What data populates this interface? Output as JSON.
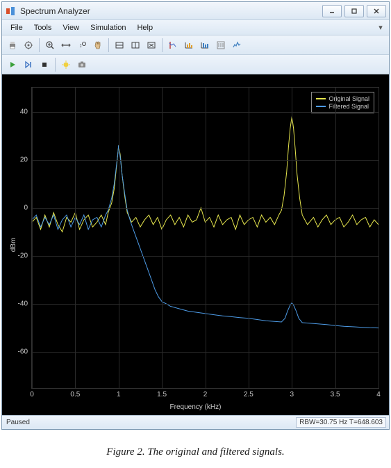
{
  "window": {
    "title": "Spectrum Analyzer",
    "icon_color_primary": "#d94f2a",
    "icon_color_secondary": "#4a90d9"
  },
  "menu": {
    "items": [
      "File",
      "Tools",
      "View",
      "Simulation",
      "Help"
    ],
    "dropdown_arrow": "▾"
  },
  "toolbars": {
    "row1_tooltips": [
      "Print",
      "Settings",
      "Zoom In",
      "Zoom X",
      "Zoom Y",
      "Pan",
      "Autoscale X",
      "Autoscale Y",
      "Autoscale Restore",
      "Measurements",
      "Cursor Measurements",
      "Peak Finder",
      "CCDF",
      "Spectrum Settings"
    ],
    "row2_tooltips": [
      "Run",
      "Step Forward",
      "Stop",
      "Highlight",
      "Snapshot"
    ]
  },
  "chart": {
    "type": "line",
    "background_color": "#000000",
    "grid_color": "#2a2a2a",
    "axis_text_color": "#cccccc",
    "x_label": "Frequency (kHz)",
    "y_label": "dBm",
    "xlim": [
      0,
      4
    ],
    "ylim": [
      -75,
      50
    ],
    "x_ticks": [
      0,
      0.5,
      1,
      1.5,
      2,
      2.5,
      3,
      3.5,
      4
    ],
    "y_ticks": [
      -60,
      -40,
      -20,
      0,
      20,
      40
    ],
    "label_fontsize": 10,
    "legend": {
      "entries": [
        {
          "label": "Original Signal",
          "color": "#e6e64d"
        },
        {
          "label": "Filtered Signal",
          "color": "#4d9be6"
        }
      ],
      "position": "top-right",
      "border_color": "#888888",
      "text_color": "#cccccc",
      "fontsize": 9
    },
    "series": {
      "original": {
        "color": "#e6e64d",
        "line_width": 1,
        "data": [
          [
            0.0,
            -6
          ],
          [
            0.05,
            -4
          ],
          [
            0.1,
            -9
          ],
          [
            0.15,
            -3
          ],
          [
            0.2,
            -8
          ],
          [
            0.25,
            -2
          ],
          [
            0.3,
            -7
          ],
          [
            0.35,
            -10
          ],
          [
            0.4,
            -4
          ],
          [
            0.45,
            -6
          ],
          [
            0.5,
            -2
          ],
          [
            0.55,
            -9
          ],
          [
            0.6,
            -5
          ],
          [
            0.65,
            -3
          ],
          [
            0.7,
            -8
          ],
          [
            0.75,
            -6
          ],
          [
            0.8,
            -3
          ],
          [
            0.85,
            -7
          ],
          [
            0.88,
            -2
          ],
          [
            0.92,
            2
          ],
          [
            0.95,
            8
          ],
          [
            0.97,
            15
          ],
          [
            0.99,
            22
          ],
          [
            1.0,
            26
          ],
          [
            1.02,
            22
          ],
          [
            1.04,
            14
          ],
          [
            1.07,
            5
          ],
          [
            1.1,
            -2
          ],
          [
            1.15,
            -6
          ],
          [
            1.2,
            -4
          ],
          [
            1.25,
            -8
          ],
          [
            1.3,
            -5
          ],
          [
            1.35,
            -3
          ],
          [
            1.4,
            -7
          ],
          [
            1.45,
            -4
          ],
          [
            1.5,
            -9
          ],
          [
            1.55,
            -5
          ],
          [
            1.6,
            -3
          ],
          [
            1.65,
            -7
          ],
          [
            1.7,
            -4
          ],
          [
            1.75,
            -8
          ],
          [
            1.8,
            -3
          ],
          [
            1.85,
            -6
          ],
          [
            1.9,
            -5
          ],
          [
            1.95,
            0
          ],
          [
            2.0,
            -6
          ],
          [
            2.05,
            -4
          ],
          [
            2.1,
            -8
          ],
          [
            2.15,
            -3
          ],
          [
            2.2,
            -7
          ],
          [
            2.25,
            -5
          ],
          [
            2.3,
            -4
          ],
          [
            2.35,
            -9
          ],
          [
            2.4,
            -3
          ],
          [
            2.45,
            -7
          ],
          [
            2.5,
            -5
          ],
          [
            2.55,
            -4
          ],
          [
            2.6,
            -8
          ],
          [
            2.65,
            -3
          ],
          [
            2.7,
            -6
          ],
          [
            2.75,
            -4
          ],
          [
            2.8,
            -7
          ],
          [
            2.85,
            -3
          ],
          [
            2.88,
            -1
          ],
          [
            2.91,
            5
          ],
          [
            2.94,
            15
          ],
          [
            2.96,
            25
          ],
          [
            2.98,
            33
          ],
          [
            3.0,
            38
          ],
          [
            3.02,
            33
          ],
          [
            3.04,
            24
          ],
          [
            3.06,
            14
          ],
          [
            3.09,
            4
          ],
          [
            3.12,
            -3
          ],
          [
            3.18,
            -7
          ],
          [
            3.25,
            -4
          ],
          [
            3.3,
            -8
          ],
          [
            3.35,
            -5
          ],
          [
            3.4,
            -3
          ],
          [
            3.45,
            -7
          ],
          [
            3.5,
            -5
          ],
          [
            3.55,
            -4
          ],
          [
            3.6,
            -8
          ],
          [
            3.65,
            -6
          ],
          [
            3.7,
            -3
          ],
          [
            3.75,
            -7
          ],
          [
            3.8,
            -5
          ],
          [
            3.85,
            -4
          ],
          [
            3.9,
            -8
          ],
          [
            3.95,
            -5
          ],
          [
            4.0,
            -7
          ]
        ]
      },
      "filtered": {
        "color": "#4d9be6",
        "line_width": 1,
        "data": [
          [
            0.0,
            -5
          ],
          [
            0.05,
            -3
          ],
          [
            0.1,
            -8
          ],
          [
            0.15,
            -4
          ],
          [
            0.2,
            -7
          ],
          [
            0.25,
            -3
          ],
          [
            0.3,
            -9
          ],
          [
            0.35,
            -5
          ],
          [
            0.4,
            -3
          ],
          [
            0.45,
            -8
          ],
          [
            0.5,
            -4
          ],
          [
            0.55,
            -7
          ],
          [
            0.6,
            -3
          ],
          [
            0.65,
            -9
          ],
          [
            0.7,
            -5
          ],
          [
            0.75,
            -4
          ],
          [
            0.8,
            -8
          ],
          [
            0.85,
            -3
          ],
          [
            0.88,
            -1
          ],
          [
            0.92,
            4
          ],
          [
            0.95,
            10
          ],
          [
            0.97,
            16
          ],
          [
            0.99,
            22
          ],
          [
            1.0,
            26
          ],
          [
            1.02,
            21
          ],
          [
            1.04,
            14
          ],
          [
            1.07,
            6
          ],
          [
            1.1,
            -1
          ],
          [
            1.14,
            -6
          ],
          [
            1.18,
            -10
          ],
          [
            1.22,
            -14
          ],
          [
            1.26,
            -18
          ],
          [
            1.3,
            -22
          ],
          [
            1.34,
            -26
          ],
          [
            1.38,
            -30
          ],
          [
            1.42,
            -34
          ],
          [
            1.46,
            -37
          ],
          [
            1.5,
            -39
          ],
          [
            1.55,
            -40
          ],
          [
            1.6,
            -41
          ],
          [
            1.7,
            -42
          ],
          [
            1.8,
            -43
          ],
          [
            1.9,
            -43.5
          ],
          [
            2.0,
            -44
          ],
          [
            2.1,
            -44.5
          ],
          [
            2.2,
            -45
          ],
          [
            2.3,
            -45.3
          ],
          [
            2.4,
            -45.7
          ],
          [
            2.5,
            -46
          ],
          [
            2.6,
            -46.5
          ],
          [
            2.7,
            -47
          ],
          [
            2.8,
            -47.3
          ],
          [
            2.88,
            -47.5
          ],
          [
            2.92,
            -46
          ],
          [
            2.95,
            -43
          ],
          [
            2.98,
            -40.5
          ],
          [
            3.0,
            -39.5
          ],
          [
            3.02,
            -40.5
          ],
          [
            3.05,
            -43
          ],
          [
            3.08,
            -46
          ],
          [
            3.12,
            -47.8
          ],
          [
            3.2,
            -48
          ],
          [
            3.3,
            -48.3
          ],
          [
            3.4,
            -48.6
          ],
          [
            3.5,
            -49
          ],
          [
            3.6,
            -49.3
          ],
          [
            3.7,
            -49.5
          ],
          [
            3.8,
            -49.7
          ],
          [
            3.9,
            -49.9
          ],
          [
            4.0,
            -50
          ]
        ]
      }
    }
  },
  "status": {
    "left": "Paused",
    "right": "RBW=30.75 Hz  T=648.603"
  },
  "caption": "Figure 2. The original and filtered signals."
}
